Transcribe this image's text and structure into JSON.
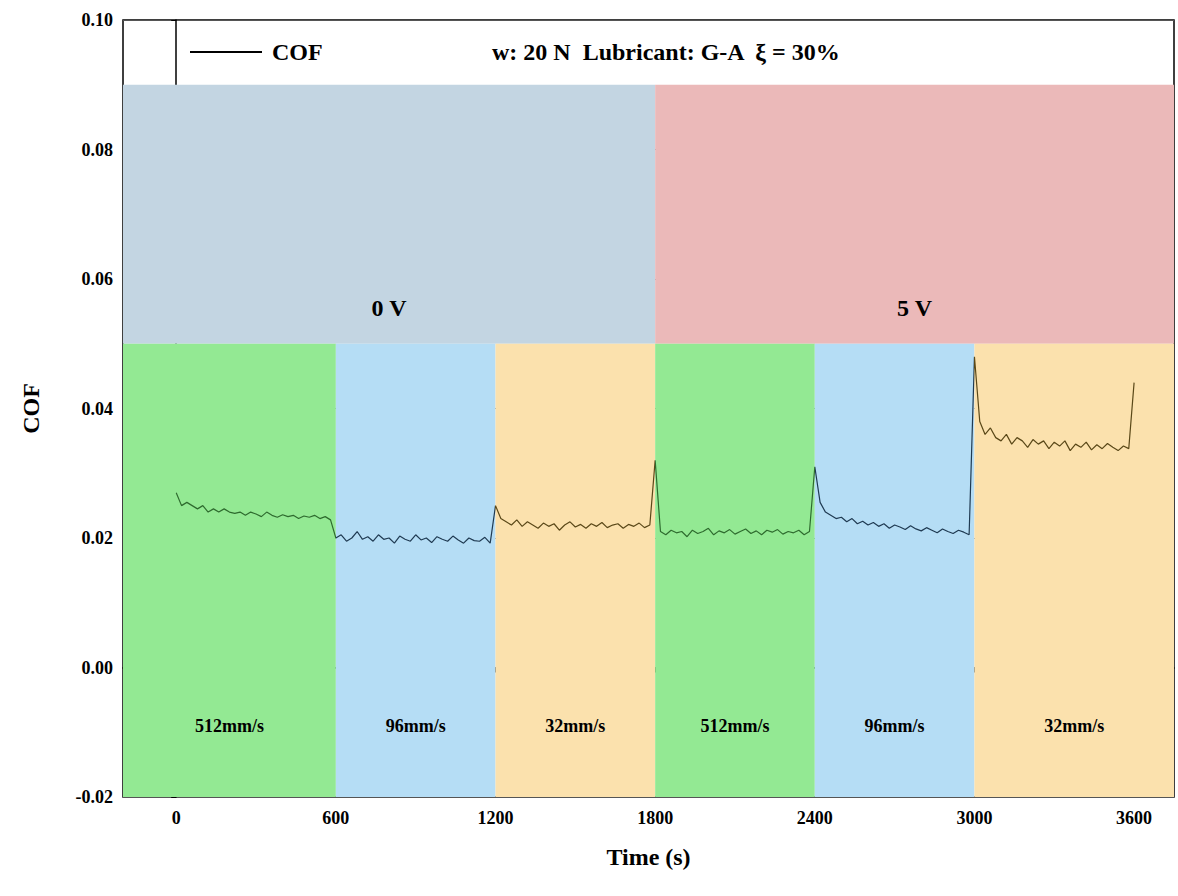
{
  "chart_data": {
    "type": "line",
    "annotation": "w: 20 N  Lubricant: G-A  ξ = 30%",
    "xlabel": "Time (s)",
    "ylabel": "COF",
    "xlim": [
      -200,
      3750
    ],
    "xticks": [
      0,
      600,
      1200,
      1800,
      2400,
      3000,
      3600
    ],
    "ylim": [
      -0.02,
      0.1
    ],
    "yticks": [
      -0.02,
      {
        "value": 0,
        "label": "0.00"
      },
      0.02,
      0.04,
      0.06,
      0.08,
      {
        "value": 0.1,
        "label": "0.10"
      }
    ],
    "grid": true,
    "legend": "upper left",
    "series": [
      {
        "name": "COF",
        "color": "#000000",
        "x": [
          0,
          20,
          40,
          60,
          80,
          100,
          120,
          140,
          160,
          180,
          200,
          220,
          240,
          260,
          280,
          300,
          320,
          340,
          360,
          380,
          400,
          420,
          440,
          460,
          480,
          500,
          520,
          540,
          560,
          580,
          600,
          620,
          640,
          660,
          680,
          700,
          720,
          740,
          760,
          780,
          800,
          820,
          840,
          860,
          880,
          900,
          920,
          940,
          960,
          980,
          1000,
          1020,
          1040,
          1060,
          1080,
          1100,
          1120,
          1140,
          1160,
          1180,
          1200,
          1220,
          1240,
          1260,
          1280,
          1300,
          1320,
          1340,
          1360,
          1380,
          1400,
          1420,
          1440,
          1460,
          1480,
          1500,
          1520,
          1540,
          1560,
          1580,
          1600,
          1620,
          1640,
          1660,
          1680,
          1700,
          1720,
          1740,
          1760,
          1780,
          1800,
          1820,
          1840,
          1860,
          1880,
          1900,
          1920,
          1940,
          1960,
          1980,
          2000,
          2020,
          2040,
          2060,
          2080,
          2100,
          2120,
          2140,
          2160,
          2180,
          2200,
          2220,
          2240,
          2260,
          2280,
          2300,
          2320,
          2340,
          2360,
          2380,
          2400,
          2420,
          2440,
          2460,
          2480,
          2500,
          2520,
          2540,
          2560,
          2580,
          2600,
          2620,
          2640,
          2660,
          2680,
          2700,
          2720,
          2740,
          2760,
          2780,
          2800,
          2820,
          2840,
          2860,
          2880,
          2900,
          2920,
          2940,
          2960,
          2980,
          3000,
          3020,
          3040,
          3060,
          3080,
          3100,
          3120,
          3140,
          3160,
          3180,
          3200,
          3220,
          3240,
          3260,
          3280,
          3300,
          3320,
          3340,
          3360,
          3380,
          3400,
          3420,
          3440,
          3460,
          3480,
          3500,
          3520,
          3540,
          3560,
          3580,
          3600
        ],
        "values": [
          0.027,
          0.025,
          0.0255,
          0.025,
          0.0245,
          0.025,
          0.024,
          0.0245,
          0.024,
          0.0245,
          0.024,
          0.0238,
          0.024,
          0.0235,
          0.024,
          0.0237,
          0.0233,
          0.024,
          0.0235,
          0.0232,
          0.0236,
          0.0233,
          0.0235,
          0.023,
          0.0234,
          0.0232,
          0.0235,
          0.023,
          0.0233,
          0.0228,
          0.02,
          0.0205,
          0.0195,
          0.02,
          0.021,
          0.0198,
          0.0202,
          0.0195,
          0.0205,
          0.0198,
          0.02,
          0.0192,
          0.0203,
          0.0198,
          0.0195,
          0.0205,
          0.0197,
          0.02,
          0.0193,
          0.0202,
          0.0198,
          0.0195,
          0.0203,
          0.0197,
          0.0192,
          0.02,
          0.0196,
          0.0195,
          0.0201,
          0.0192,
          0.025,
          0.023,
          0.0225,
          0.022,
          0.0228,
          0.0218,
          0.0225,
          0.022,
          0.0215,
          0.0223,
          0.0218,
          0.0222,
          0.0212,
          0.022,
          0.0225,
          0.0217,
          0.0221,
          0.0215,
          0.0222,
          0.0218,
          0.0224,
          0.0216,
          0.022,
          0.0222,
          0.0215,
          0.0221,
          0.0218,
          0.0223,
          0.0216,
          0.022,
          0.032,
          0.021,
          0.0205,
          0.0212,
          0.0208,
          0.021,
          0.0202,
          0.0212,
          0.0207,
          0.021,
          0.0215,
          0.0205,
          0.0211,
          0.0208,
          0.0213,
          0.0206,
          0.021,
          0.0214,
          0.0207,
          0.0211,
          0.0205,
          0.0212,
          0.0209,
          0.0213,
          0.0206,
          0.021,
          0.0208,
          0.0212,
          0.0205,
          0.021,
          0.031,
          0.0255,
          0.024,
          0.0235,
          0.023,
          0.0232,
          0.0225,
          0.023,
          0.0222,
          0.0226,
          0.022,
          0.0224,
          0.0218,
          0.0222,
          0.0215,
          0.022,
          0.0217,
          0.0213,
          0.0219,
          0.0214,
          0.0211,
          0.0216,
          0.0212,
          0.0208,
          0.0214,
          0.021,
          0.0207,
          0.0212,
          0.0209,
          0.0205,
          0.048,
          0.038,
          0.036,
          0.037,
          0.0355,
          0.035,
          0.036,
          0.0345,
          0.0355,
          0.035,
          0.034,
          0.0352,
          0.0345,
          0.035,
          0.0338,
          0.0348,
          0.0342,
          0.035,
          0.0335,
          0.0345,
          0.034,
          0.0348,
          0.0336,
          0.0344,
          0.0338,
          0.0346,
          0.034,
          0.0335,
          0.0342,
          0.0338,
          0.044
        ]
      }
    ],
    "voltage_bands": {
      "ylim": [
        0.05,
        0.09
      ],
      "bands": [
        {
          "label": "0 V",
          "start": -200,
          "end": 1800,
          "color": "#c3d5e2"
        },
        {
          "label": "5 V",
          "start": 1800,
          "end": 3750,
          "color": "#ebb9b9"
        }
      ]
    },
    "speed_bands": {
      "ylim": [
        -0.02,
        0.05
      ],
      "bands": [
        {
          "label": "512mm/s",
          "start": -200,
          "end": 600,
          "color": "#93e993",
          "line_color": "#2e6b2e"
        },
        {
          "label": "96mm/s",
          "start": 600,
          "end": 1200,
          "color": "#b5ddf5",
          "line_color": "#1f3a52"
        },
        {
          "label": "32mm/s",
          "start": 1200,
          "end": 1800,
          "color": "#fbe1ad",
          "line_color": "#5a4818"
        },
        {
          "label": "512mm/s",
          "start": 1800,
          "end": 2400,
          "color": "#93e993",
          "line_color": "#2e6b2e"
        },
        {
          "label": "96mm/s",
          "start": 2400,
          "end": 3000,
          "color": "#b5ddf5",
          "line_color": "#1f3a52"
        },
        {
          "label": "32mm/s",
          "start": 3000,
          "end": 3750,
          "color": "#fbe1ad",
          "line_color": "#5a4818"
        }
      ]
    }
  }
}
